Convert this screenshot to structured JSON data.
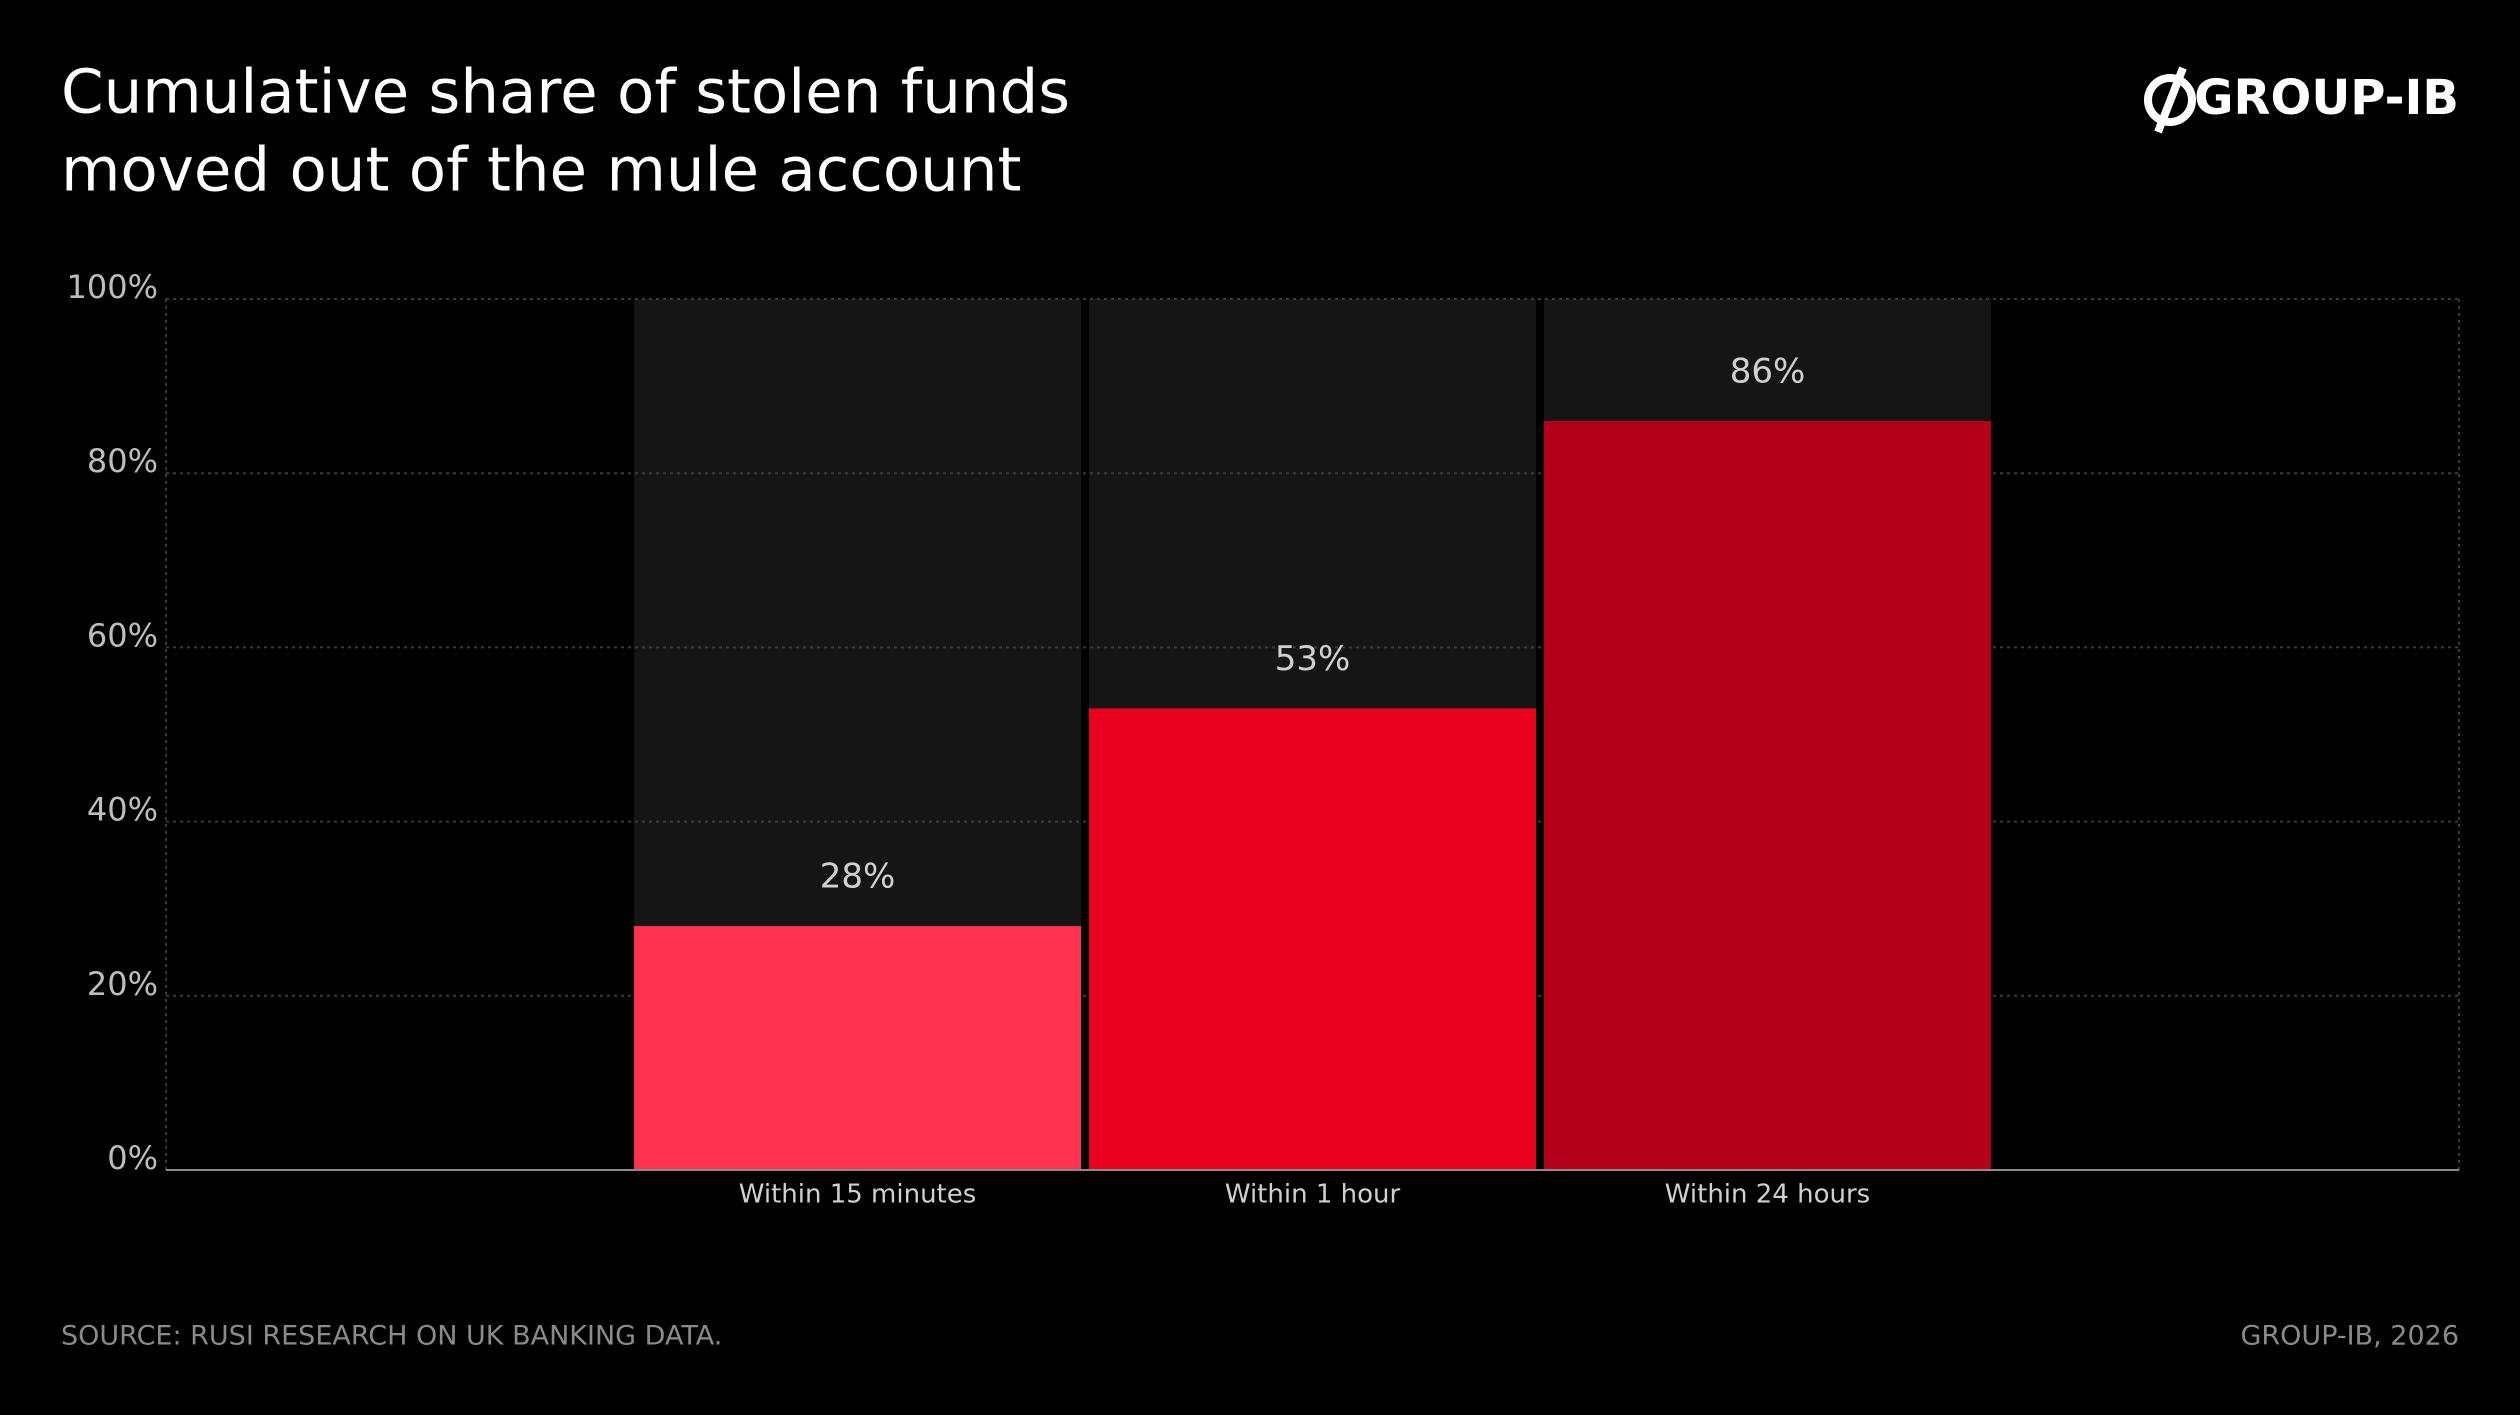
{
  "brand": "GROUP-IB",
  "chart_data": {
    "type": "bar",
    "title": [
      "Cumulative share of stolen funds",
      "moved out of the mule account"
    ],
    "categories": [
      "Within 15 minutes",
      "Within 1 hour",
      "Within 24 hours"
    ],
    "values": [
      28,
      53,
      86
    ],
    "value_labels": [
      "28%",
      "53%",
      "86%"
    ],
    "colors": [
      "#ff3350",
      "#e8001f",
      "#b5001c"
    ],
    "ylim": [
      0,
      100
    ],
    "yticks": [
      {
        "value": 0,
        "label": "0%"
      },
      {
        "value": 20,
        "label": "20%"
      },
      {
        "value": 40,
        "label": "40%"
      },
      {
        "value": 60,
        "label": "60%"
      },
      {
        "value": 80,
        "label": "80%"
      },
      {
        "value": 100,
        "label": "100%"
      }
    ],
    "grid": true
  },
  "footer": {
    "source": "SOURCE: RUSI RESEARCH ON UK BANKING DATA.",
    "credit": "GROUP-IB, 2026"
  }
}
